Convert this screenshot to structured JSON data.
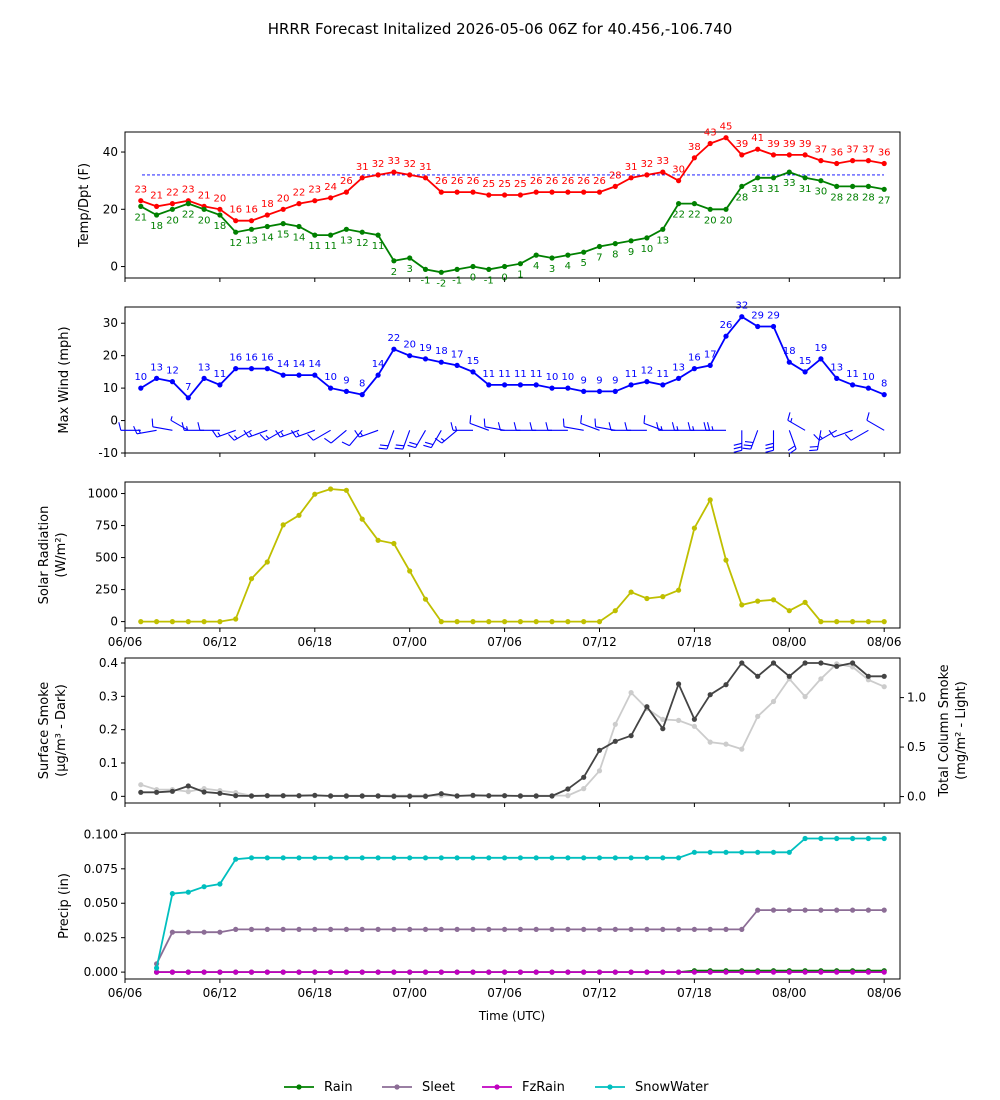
{
  "figure": {
    "title": "HRRR Forecast Initalized 2026-05-06 06Z for 40.456,-106.740",
    "xlabel": "Time (UTC)",
    "x_ticks": [
      "06/06",
      "06/12",
      "06/18",
      "07/00",
      "07/06",
      "07/12",
      "07/18",
      "08/00",
      "08/06"
    ],
    "x_tick_hours": [
      0,
      6,
      12,
      18,
      24,
      30,
      36,
      42,
      48
    ],
    "x_range_hours": [
      0,
      49
    ],
    "hours": [
      1,
      2,
      3,
      4,
      5,
      6,
      7,
      8,
      9,
      10,
      11,
      12,
      13,
      14,
      15,
      16,
      17,
      18,
      19,
      20,
      21,
      22,
      23,
      24,
      25,
      26,
      27,
      28,
      29,
      30,
      31,
      32,
      33,
      34,
      35,
      36,
      37,
      38,
      39,
      40,
      41,
      42,
      43,
      44,
      45,
      46,
      47,
      48
    ]
  },
  "chart_data": [
    {
      "type": "line",
      "ylabel": "Temp/Dpt (F)",
      "ylim": [
        -4,
        47
      ],
      "yticks": [
        0,
        20,
        40
      ],
      "reference_line": 32,
      "show_data_labels": true,
      "series": [
        {
          "color": "#ff0000",
          "label_offset": -8,
          "values": [
            23,
            21,
            22,
            23,
            21,
            20,
            16,
            16,
            18,
            20,
            22,
            23,
            24,
            26,
            31,
            32,
            33,
            32,
            31,
            26,
            26,
            26,
            25,
            25,
            25,
            26,
            26,
            26,
            26,
            26,
            28,
            31,
            32,
            33,
            30,
            38,
            43,
            45,
            39,
            41,
            39,
            39,
            39,
            37,
            36,
            37,
            37,
            36
          ]
        },
        {
          "color": "#008000",
          "label_offset": 14,
          "values": [
            21,
            18,
            20,
            22,
            20,
            18,
            12,
            13,
            14,
            15,
            14,
            11,
            11,
            13,
            12,
            11,
            2,
            3,
            -1,
            -2,
            -1,
            0,
            -1,
            0,
            1,
            4,
            3,
            4,
            5,
            7,
            8,
            9,
            10,
            13,
            22,
            22,
            20,
            20,
            28,
            31,
            31,
            33,
            31,
            30,
            28,
            28,
            28,
            27
          ]
        }
      ]
    },
    {
      "type": "line",
      "ylabel": "Max Wind (mph)",
      "ylim": [
        -10,
        35
      ],
      "yticks": [
        -10,
        0,
        10,
        20,
        30
      ],
      "show_data_labels": true,
      "series": [
        {
          "color": "#0000ff",
          "label_offset": -8,
          "values": [
            10,
            13,
            12,
            7,
            13,
            11,
            16,
            16,
            16,
            14,
            14,
            14,
            10,
            9,
            8,
            14,
            22,
            20,
            19,
            18,
            17,
            15,
            11,
            11,
            11,
            11,
            10,
            10,
            9,
            9,
            9,
            11,
            12,
            11,
            13,
            16,
            17,
            26,
            32,
            29,
            29,
            18,
            15,
            19,
            13,
            11,
            10,
            8
          ]
        }
      ],
      "wind_barbs": {
        "color": "#0000ff",
        "y": -3,
        "dir_deg": [
          270,
          260,
          280,
          300,
          270,
          270,
          250,
          240,
          250,
          240,
          250,
          250,
          240,
          230,
          220,
          250,
          200,
          200,
          210,
          210,
          230,
          270,
          290,
          280,
          270,
          270,
          270,
          270,
          280,
          290,
          280,
          270,
          270,
          290,
          270,
          270,
          270,
          270,
          180,
          200,
          180,
          160,
          300,
          190,
          240,
          250,
          240,
          300
        ]
      }
    },
    {
      "type": "line",
      "ylabel": "Solar Radiation",
      "ylabel2": "(W/m²)",
      "ylim": [
        -50,
        1090
      ],
      "yticks": [
        0,
        250,
        500,
        750,
        1000
      ],
      "series": [
        {
          "color": "#bfbf00",
          "values": [
            0,
            0,
            0,
            0,
            0,
            0,
            20,
            335,
            465,
            755,
            830,
            995,
            1035,
            1025,
            800,
            635,
            610,
            395,
            175,
            0,
            0,
            0,
            0,
            0,
            0,
            0,
            0,
            0,
            0,
            0,
            85,
            230,
            180,
            195,
            245,
            730,
            950,
            480,
            130,
            160,
            170,
            85,
            150,
            0,
            0,
            0,
            0,
            0
          ]
        }
      ]
    },
    {
      "type": "line",
      "ylabel": "Surface Smoke",
      "ylabel2": "(μg/m³ - Dark)",
      "ylim": [
        -0.02,
        0.415
      ],
      "yticks": [
        0.0,
        0.1,
        0.2,
        0.3,
        0.4
      ],
      "y2label": "Total Column Smoke",
      "y2label2": "(mg/m² - Light)",
      "y2lim": [
        -0.065,
        1.4
      ],
      "y2ticks": [
        0.0,
        0.5,
        1.0
      ],
      "series": [
        {
          "color": "#cccccc",
          "axis": "right",
          "values": [
            0.12,
            0.07,
            0.07,
            0.05,
            0.08,
            0.06,
            0.04,
            0.01,
            0.01,
            0.01,
            0.01,
            0.01,
            0.01,
            0.01,
            0.01,
            0.01,
            0.01,
            0.01,
            0.01,
            0.01,
            0.01,
            0.01,
            0.01,
            0.01,
            0.01,
            0.01,
            0.01,
            0.01,
            0.08,
            0.26,
            0.73,
            1.05,
            0.89,
            0.78,
            0.77,
            0.71,
            0.55,
            0.53,
            0.48,
            0.81,
            0.96,
            1.19,
            1.01,
            1.19,
            1.34,
            1.31,
            1.18,
            1.11
          ]
        },
        {
          "color": "#444444",
          "axis": "left",
          "values": [
            0.012,
            0.012,
            0.015,
            0.031,
            0.013,
            0.009,
            0.002,
            0.001,
            0.002,
            0.002,
            0.002,
            0.003,
            0.001,
            0.001,
            0.001,
            0.001,
            0.0,
            0.0,
            0.0,
            0.008,
            0.001,
            0.003,
            0.002,
            0.002,
            0.001,
            0.001,
            0.001,
            0.022,
            0.057,
            0.138,
            0.165,
            0.182,
            0.269,
            0.203,
            0.337,
            0.231,
            0.305,
            0.335,
            0.4,
            0.36,
            0.4,
            0.36,
            0.4,
            0.4,
            0.39,
            0.4,
            0.36,
            0.36
          ]
        }
      ]
    },
    {
      "type": "line",
      "ylabel": "Precip (in)",
      "ylim": [
        -0.005,
        0.101
      ],
      "yticks": [
        0.0,
        0.025,
        0.05,
        0.075,
        0.1
      ],
      "ytick_labels": [
        "0.000",
        "0.025",
        "0.050",
        "0.075",
        "0.100"
      ],
      "start_hour": 2,
      "series": [
        {
          "name": "Rain",
          "color": "#008000",
          "values": [
            0.0,
            0.0,
            0.0,
            0.0,
            0.0,
            0.0,
            0.0,
            0.0,
            0.0,
            0.0,
            0.0,
            0.0,
            0.0,
            0.0,
            0.0,
            0.0,
            0.0,
            0.0,
            0.0,
            0.0,
            0.0,
            0.0,
            0.0,
            0.0,
            0.0,
            0.0,
            0.0,
            0.0,
            0.0,
            0.0,
            0.0,
            0.0,
            0.0,
            0.0,
            0.001,
            0.001,
            0.001,
            0.001,
            0.001,
            0.001,
            0.001,
            0.001,
            0.001,
            0.001,
            0.001,
            0.001,
            0.001
          ]
        },
        {
          "name": "Sleet",
          "color": "#8c6d96",
          "values": [
            0.006,
            0.029,
            0.029,
            0.029,
            0.029,
            0.031,
            0.031,
            0.031,
            0.031,
            0.031,
            0.031,
            0.031,
            0.031,
            0.031,
            0.031,
            0.031,
            0.031,
            0.031,
            0.031,
            0.031,
            0.031,
            0.031,
            0.031,
            0.031,
            0.031,
            0.031,
            0.031,
            0.031,
            0.031,
            0.031,
            0.031,
            0.031,
            0.031,
            0.031,
            0.031,
            0.031,
            0.031,
            0.031,
            0.045,
            0.045,
            0.045,
            0.045,
            0.045,
            0.045,
            0.045,
            0.045,
            0.045
          ]
        },
        {
          "name": "FzRain",
          "color": "#c000c0",
          "values": [
            0.0,
            0.0,
            0.0,
            0.0,
            0.0,
            0.0,
            0.0,
            0.0,
            0.0,
            0.0,
            0.0,
            0.0,
            0.0,
            0.0,
            0.0,
            0.0,
            0.0,
            0.0,
            0.0,
            0.0,
            0.0,
            0.0,
            0.0,
            0.0,
            0.0,
            0.0,
            0.0,
            0.0,
            0.0,
            0.0,
            0.0,
            0.0,
            0.0,
            0.0,
            0.0,
            0.0,
            0.0,
            0.0,
            0.0,
            0.0,
            0.0,
            0.0,
            0.0,
            0.0,
            0.0,
            0.0,
            0.0
          ]
        },
        {
          "name": "SnowWater",
          "color": "#00bfbf",
          "values": [
            0.003,
            0.057,
            0.058,
            0.062,
            0.064,
            0.082,
            0.083,
            0.083,
            0.083,
            0.083,
            0.083,
            0.083,
            0.083,
            0.083,
            0.083,
            0.083,
            0.083,
            0.083,
            0.083,
            0.083,
            0.083,
            0.083,
            0.083,
            0.083,
            0.083,
            0.083,
            0.083,
            0.083,
            0.083,
            0.083,
            0.083,
            0.083,
            0.083,
            0.083,
            0.087,
            0.087,
            0.087,
            0.087,
            0.087,
            0.087,
            0.087,
            0.097,
            0.097,
            0.097,
            0.097,
            0.097,
            0.097
          ]
        }
      ]
    }
  ],
  "legend": {
    "placement": "bottom-center",
    "entries": [
      "Rain",
      "Sleet",
      "FzRain",
      "SnowWater"
    ]
  }
}
